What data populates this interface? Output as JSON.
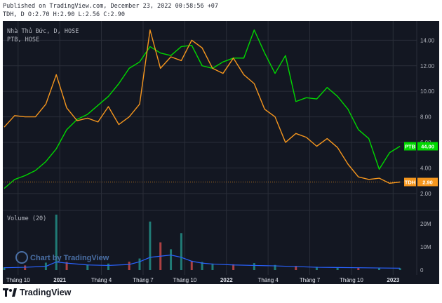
{
  "header": {
    "published": "Published on TradingView.com, December 23, 2022 00:58:56 +07",
    "symbol_line": "TDH, D O:2.70 H:2.90 L:2.56 C:2.90"
  },
  "pane_labels": {
    "main_title": "Nhà Thủ Đức, D, HOSE",
    "compare_symbol": "PTB, HOSE",
    "volume_title": "Volume (20)"
  },
  "watermark": "Chart by TradingView",
  "footer_logo": "TradingView",
  "colors": {
    "background": "#131722",
    "grid": "#2a2e39",
    "axis_text": "#b2b5be",
    "ptb": "#00d800",
    "tdh": "#f5961e",
    "volume_up": "#26a69a",
    "volume_down": "#ef5350",
    "volume_ma": "#2962ff"
  },
  "chart_data": [
    {
      "type": "line",
      "title": "Nhà Thủ Đức, D, HOSE",
      "x_ticks": [
        "Tháng 10",
        "2021",
        "Tháng 4",
        "Tháng 7",
        "Tháng 10",
        "2022",
        "Tháng 4",
        "Tháng 7",
        "Tháng 10",
        "2023"
      ],
      "y_ticks": [
        "2.00",
        "4.00",
        "6.00",
        "8.00",
        "10.00",
        "12.00",
        "14.00"
      ],
      "ylim": [
        1.5,
        15.5
      ],
      "grid": true,
      "series": [
        {
          "name": "PTB",
          "price_label": "44.00",
          "x": [
            0,
            3,
            6,
            9,
            12,
            15,
            18,
            21,
            24,
            27,
            30,
            33,
            36,
            39,
            42,
            45,
            48,
            51,
            54,
            57,
            60,
            63,
            66,
            69,
            72,
            75,
            78,
            81,
            84,
            87,
            90,
            93,
            96,
            99,
            102,
            105,
            108,
            111,
            114
          ],
          "values": [
            2.4,
            3.1,
            3.4,
            3.8,
            4.5,
            5.5,
            7.0,
            7.8,
            8.2,
            8.9,
            9.6,
            10.6,
            11.8,
            12.3,
            13.5,
            13.0,
            12.8,
            13.5,
            13.6,
            12.0,
            11.8,
            12.3,
            12.6,
            12.6,
            14.8,
            13.0,
            11.4,
            12.8,
            9.2,
            9.5,
            9.4,
            10.3,
            9.6,
            8.6,
            7.0,
            6.3,
            3.9,
            5.2,
            5.7
          ]
        },
        {
          "name": "TDH",
          "price_label": "2.90",
          "x": [
            0,
            3,
            6,
            9,
            12,
            15,
            18,
            21,
            24,
            27,
            30,
            33,
            36,
            39,
            42,
            45,
            48,
            51,
            54,
            57,
            60,
            63,
            66,
            69,
            72,
            75,
            78,
            81,
            84,
            87,
            90,
            93,
            96,
            99,
            102,
            105,
            108,
            111,
            114
          ],
          "values": [
            7.2,
            8.1,
            8.0,
            8.0,
            9.0,
            11.3,
            8.7,
            7.7,
            7.9,
            7.6,
            8.8,
            7.4,
            8.0,
            9.0,
            14.8,
            11.8,
            12.7,
            12.4,
            14.0,
            13.4,
            11.8,
            11.4,
            12.6,
            11.3,
            10.6,
            8.6,
            8.0,
            6.0,
            6.7,
            6.4,
            5.7,
            6.3,
            5.6,
            4.3,
            3.3,
            3.1,
            3.2,
            2.8,
            2.9
          ]
        }
      ]
    },
    {
      "type": "bar",
      "title": "Volume (20)",
      "y_ticks": [
        "0",
        "10M",
        "20M"
      ],
      "ylim": [
        0,
        24
      ],
      "unit": "M",
      "x": [
        0,
        6,
        12,
        15,
        18,
        24,
        30,
        36,
        39,
        42,
        45,
        48,
        51,
        54,
        57,
        60,
        66,
        72,
        78,
        84,
        90,
        96,
        102,
        108,
        114
      ],
      "values": [
        1.2,
        2.0,
        3.2,
        24.0,
        3.5,
        2.4,
        2.8,
        3.6,
        5.0,
        21.0,
        12.0,
        9.0,
        16.0,
        4.0,
        3.5,
        2.8,
        2.5,
        3.0,
        2.2,
        1.8,
        1.4,
        1.2,
        1.0,
        0.9,
        0.8
      ],
      "ma_values": [
        1.0,
        1.2,
        1.6,
        3.5,
        3.0,
        2.2,
        2.0,
        2.4,
        3.6,
        5.5,
        6.0,
        6.5,
        5.5,
        3.8,
        3.0,
        2.6,
        2.2,
        2.0,
        1.8,
        1.5,
        1.2,
        1.1,
        1.0,
        0.9,
        0.8
      ]
    }
  ]
}
